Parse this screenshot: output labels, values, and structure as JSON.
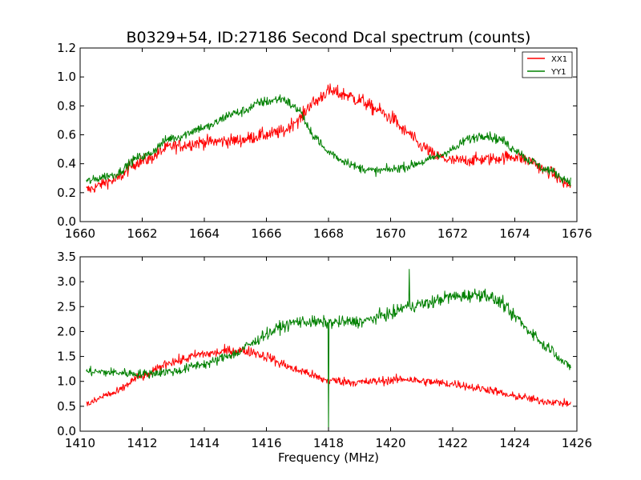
{
  "title": "B0329+54, ID:27186 Second Dcal spectrum (counts)",
  "xlabel": "Frequency (MHz)",
  "colors": {
    "xx": "#ff0000",
    "yy": "#008000"
  },
  "chart_data": [
    {
      "type": "line",
      "title": "B0329+54, ID:27186 Second Dcal spectrum (counts)",
      "xlabel": "",
      "ylabel": "",
      "xlim": [
        1660,
        1676
      ],
      "ylim": [
        0,
        1.2
      ],
      "xticks": [
        "1660",
        "1662",
        "1664",
        "1666",
        "1668",
        "1670",
        "1672",
        "1674",
        "1676"
      ],
      "yticks": [
        "0.0",
        "0.2",
        "0.4",
        "0.6",
        "0.8",
        "1.0",
        "1.2"
      ],
      "grid": false,
      "legend": "top-right",
      "series": [
        {
          "name": "XX1",
          "color": "#ff0000",
          "noise": 0.035,
          "x": [
            1660.2,
            1661,
            1662,
            1663,
            1664,
            1665,
            1666,
            1666.5,
            1667,
            1667.5,
            1668,
            1668.5,
            1669,
            1669.5,
            1670,
            1670.5,
            1671,
            1671.5,
            1672,
            1673,
            1674,
            1674.5,
            1675,
            1675.8
          ],
          "y": [
            0.22,
            0.28,
            0.42,
            0.52,
            0.55,
            0.56,
            0.6,
            0.62,
            0.7,
            0.82,
            0.9,
            0.88,
            0.84,
            0.78,
            0.72,
            0.62,
            0.52,
            0.45,
            0.42,
            0.43,
            0.45,
            0.42,
            0.35,
            0.25
          ]
        },
        {
          "name": "YY1",
          "color": "#008000",
          "noise": 0.025,
          "x": [
            1660.2,
            1661,
            1662,
            1663,
            1664,
            1665,
            1666,
            1666.5,
            1667,
            1667.5,
            1668,
            1668.5,
            1669,
            1669.5,
            1670,
            1670.5,
            1671,
            1671.5,
            1672,
            1672.5,
            1673,
            1673.5,
            1674,
            1674.5,
            1675,
            1675.8
          ],
          "y": [
            0.28,
            0.32,
            0.45,
            0.58,
            0.65,
            0.75,
            0.83,
            0.85,
            0.78,
            0.6,
            0.48,
            0.42,
            0.37,
            0.35,
            0.36,
            0.38,
            0.41,
            0.45,
            0.5,
            0.57,
            0.6,
            0.57,
            0.5,
            0.42,
            0.36,
            0.28
          ]
        }
      ]
    },
    {
      "type": "line",
      "xlabel": "Frequency (MHz)",
      "ylabel": "",
      "xlim": [
        1410,
        1426
      ],
      "ylim": [
        0,
        3.5
      ],
      "xticks": [
        "1410",
        "1412",
        "1414",
        "1416",
        "1418",
        "1420",
        "1422",
        "1424",
        "1426"
      ],
      "yticks": [
        "0.0",
        "0.5",
        "1.0",
        "1.5",
        "2.0",
        "2.5",
        "3.0",
        "3.5"
      ],
      "grid": false,
      "series": [
        {
          "name": "XX1",
          "color": "#ff0000",
          "noise": 0.06,
          "x": [
            1410.2,
            1411,
            1412,
            1413,
            1414,
            1415,
            1415.5,
            1416,
            1416.5,
            1417,
            1418,
            1419,
            1420,
            1420.5,
            1421,
            1422,
            1423,
            1424,
            1425,
            1425.8
          ],
          "y": [
            0.55,
            0.75,
            1.1,
            1.4,
            1.55,
            1.62,
            1.6,
            1.5,
            1.35,
            1.22,
            1.02,
            0.98,
            1.02,
            1.05,
            1.0,
            0.95,
            0.85,
            0.7,
            0.6,
            0.55
          ]
        },
        {
          "name": "YY1",
          "color": "#008000",
          "noise": 0.06,
          "x": [
            1410.2,
            1411,
            1412,
            1413,
            1414,
            1415,
            1415.5,
            1416,
            1416.5,
            1417,
            1418,
            1419,
            1420,
            1420.5,
            1421,
            1422,
            1423,
            1423.5,
            1424,
            1424.5,
            1425,
            1425.8
          ],
          "y": [
            1.2,
            1.18,
            1.15,
            1.2,
            1.35,
            1.55,
            1.75,
            1.95,
            2.1,
            2.2,
            2.18,
            2.2,
            2.35,
            2.5,
            2.55,
            2.7,
            2.75,
            2.6,
            2.3,
            2.0,
            1.7,
            1.3
          ],
          "spikes": [
            {
              "x": 1418.0,
              "y": 0.0
            },
            {
              "x": 1420.6,
              "y": 3.25
            }
          ]
        }
      ]
    }
  ]
}
